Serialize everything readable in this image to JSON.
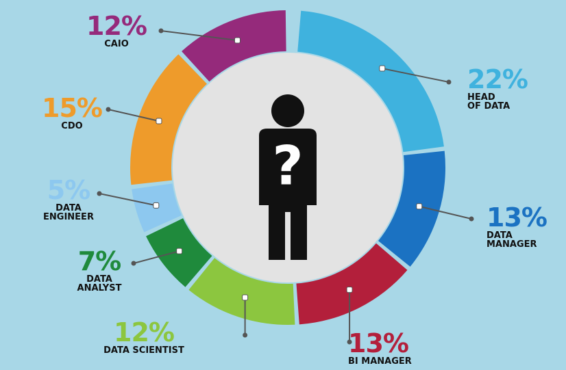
{
  "chart_data": {
    "type": "pie",
    "categories": [
      "HEAD\nOF DATA",
      "DATA\nMANAGER",
      "BI MANAGER",
      "DATA SCIENTIST",
      "DATA\nANALYST",
      "DATA\nENGINEER",
      "CDO",
      "CAIO"
    ],
    "values": [
      22,
      13,
      13,
      12,
      7,
      5,
      15,
      12
    ],
    "value_labels": [
      "22%",
      "13%",
      "13%",
      "12%",
      "7%",
      "5%",
      "15%",
      "12%"
    ],
    "colors": [
      "#3fb2de",
      "#1b72c2",
      "#b31f3b",
      "#8cc63f",
      "#1f8a3c",
      "#8dc8ef",
      "#ee9b2b",
      "#952a7b"
    ],
    "center_label": "?"
  }
}
